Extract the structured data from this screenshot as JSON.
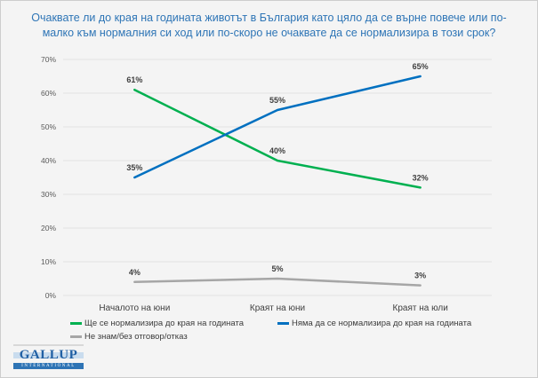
{
  "title": {
    "line1": "Очаквате ли до края на годината животът в България като цяло да се върне повече или по-",
    "line2": "малко към нормалния си ход или по-скоро не очаквате да се нормализира в този срок?"
  },
  "chart_data": {
    "type": "line",
    "categories": [
      "Началото на юни",
      "Краят на юни",
      "Краят на юли"
    ],
    "series": [
      {
        "name": "Ще се нормализира до края на годината",
        "color": "#00B050",
        "values": [
          61,
          40,
          32
        ]
      },
      {
        "name": "Няма да се нормализира до края на годината",
        "color": "#0070C0",
        "values": [
          35,
          55,
          65
        ]
      },
      {
        "name": "Не знам/без отговор/отказ",
        "color": "#A6A6A6",
        "values": [
          4,
          5,
          3
        ]
      }
    ],
    "title": "",
    "xlabel": "",
    "ylabel": "",
    "ylim": [
      0,
      70
    ],
    "y_tick_step": 10,
    "y_tick_suffix": "%",
    "data_label_suffix": "%",
    "grid": true,
    "legend_position": "bottom"
  },
  "logo": {
    "brand": "GALLUP",
    "sub": "INTERNATIONAL"
  },
  "colors": {
    "title_text": "#2E75B6",
    "background": "#F4F4F4",
    "page_border": "#CDCDCD",
    "gridline": "#E2E2E2",
    "tick_text": "#595959",
    "label_text": "#404040",
    "legend_text": "#3B3B3B"
  }
}
